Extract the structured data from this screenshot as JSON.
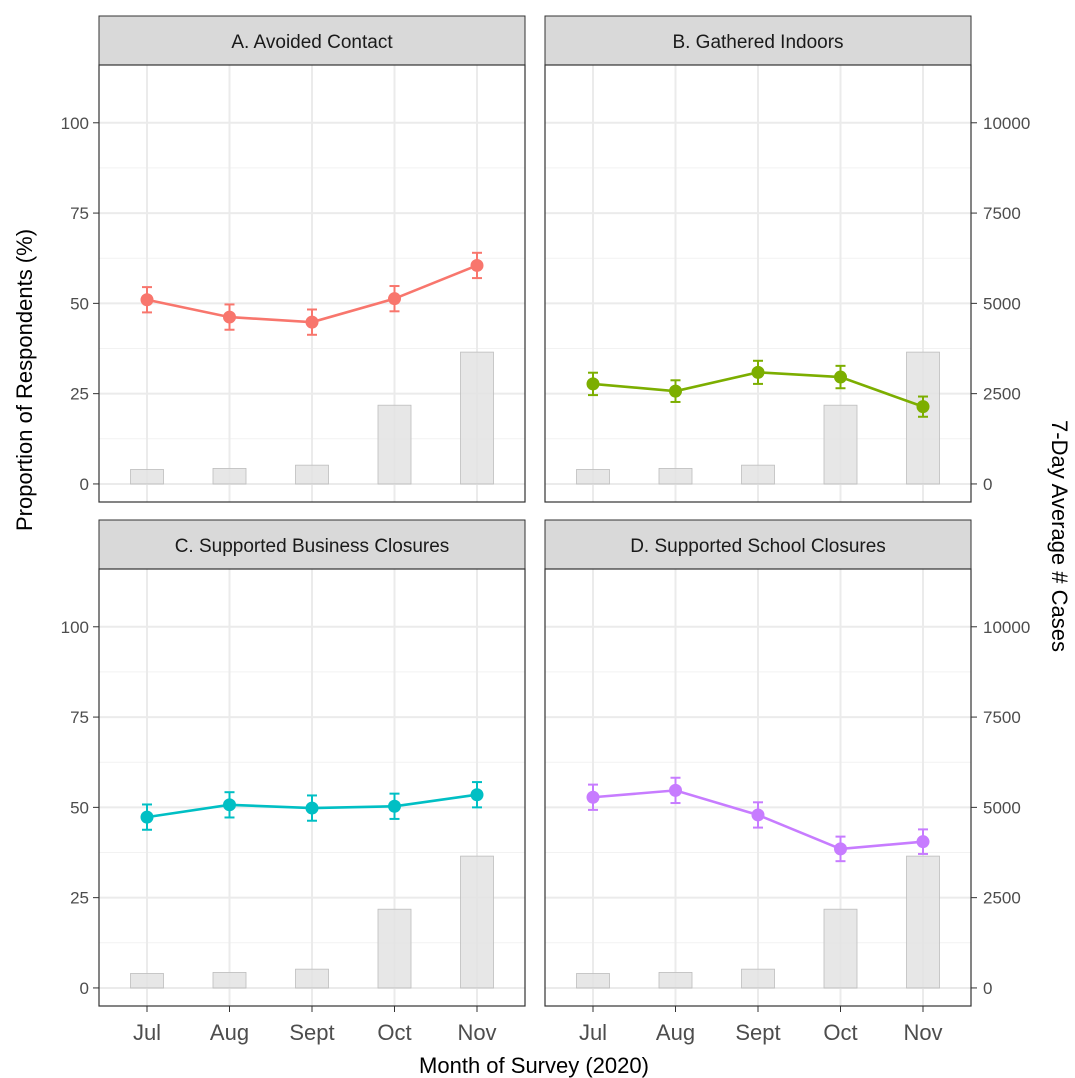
{
  "chart_data": {
    "type": "line",
    "facets": [
      {
        "id": "A",
        "title": "A. Avoided Contact",
        "color": "#F8766D",
        "values": [
          51,
          46.2,
          44.8,
          51.3,
          60.5
        ],
        "err": [
          3.5,
          3.5,
          3.5,
          3.5,
          3.5
        ]
      },
      {
        "id": "B",
        "title": "B. Gathered Indoors",
        "color": "#7CAE00",
        "values": [
          27.7,
          25.7,
          30.9,
          29.6,
          21.4
        ],
        "err": [
          3.1,
          3.0,
          3.2,
          3.1,
          2.8
        ]
      },
      {
        "id": "C",
        "title": "C. Supported Business Closures",
        "color": "#00BFC4",
        "values": [
          47.3,
          50.7,
          49.8,
          50.3,
          53.5
        ],
        "err": [
          3.5,
          3.5,
          3.5,
          3.5,
          3.5
        ]
      },
      {
        "id": "D",
        "title": "D. Supported School Closures",
        "color": "#C77CFF",
        "values": [
          52.8,
          54.7,
          47.9,
          38.5,
          40.5
        ],
        "err": [
          3.5,
          3.5,
          3.5,
          3.4,
          3.4
        ]
      }
    ],
    "categories": [
      "Jul",
      "Aug",
      "Sept",
      "Oct",
      "Nov"
    ],
    "bar_series": {
      "values": [
        400,
        430,
        520,
        2180,
        3650
      ],
      "color": "#e3e3e3"
    },
    "y_left": {
      "label": "Proportion of Respondents (%)",
      "ticks": [
        "0",
        "25",
        "50",
        "75",
        "100"
      ],
      "range": [
        -5,
        116
      ]
    },
    "y_right": {
      "label": "7-Day Average # Cases",
      "ticks": [
        "0",
        "2500",
        "5000",
        "7500",
        "10000"
      ],
      "range": [
        -500,
        11600
      ]
    },
    "xlabel": "Month of Survey (2020)",
    "grid": true
  }
}
